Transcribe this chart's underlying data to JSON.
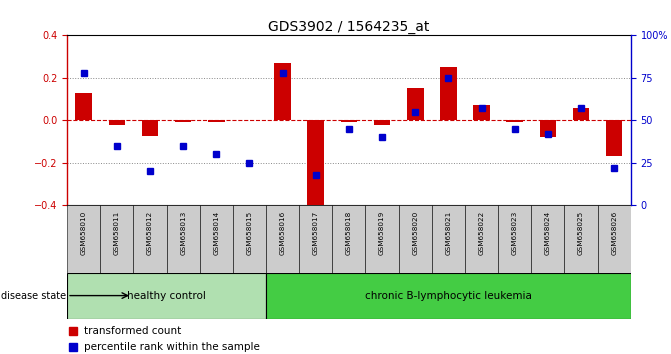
{
  "title": "GDS3902 / 1564235_at",
  "samples": [
    "GSM658010",
    "GSM658011",
    "GSM658012",
    "GSM658013",
    "GSM658014",
    "GSM658015",
    "GSM658016",
    "GSM658017",
    "GSM658018",
    "GSM658019",
    "GSM658020",
    "GSM658021",
    "GSM658022",
    "GSM658023",
    "GSM658024",
    "GSM658025",
    "GSM658026"
  ],
  "red_values": [
    0.13,
    -0.02,
    -0.075,
    -0.01,
    -0.01,
    0.0,
    0.27,
    -0.4,
    -0.01,
    -0.02,
    0.15,
    0.25,
    0.07,
    -0.01,
    -0.08,
    0.06,
    -0.17
  ],
  "blue_values_pct": [
    78,
    35,
    20,
    35,
    30,
    25,
    78,
    18,
    45,
    40,
    55,
    75,
    57,
    45,
    42,
    57,
    22
  ],
  "healthy_count": 6,
  "ylim": [
    -0.4,
    0.4
  ],
  "y2lim": [
    0,
    100
  ],
  "yticks": [
    -0.4,
    -0.2,
    0.0,
    0.2,
    0.4
  ],
  "y2ticks": [
    0,
    25,
    50,
    75,
    100
  ],
  "y2tick_labels": [
    "0",
    "25",
    "50",
    "75",
    "100%"
  ],
  "red_color": "#cc0000",
  "blue_color": "#0000cc",
  "hline_color": "#cc0000",
  "dotted_color": "#888888",
  "healthy_bg": "#b0e0b0",
  "leukemia_bg": "#44cc44",
  "xticklabel_bg": "#cccccc",
  "bar_width": 0.5,
  "legend_items": [
    "transformed count",
    "percentile rank within the sample"
  ],
  "disease_state_label": "disease state",
  "healthy_label": "healthy control",
  "leukemia_label": "chronic B-lymphocytic leukemia"
}
